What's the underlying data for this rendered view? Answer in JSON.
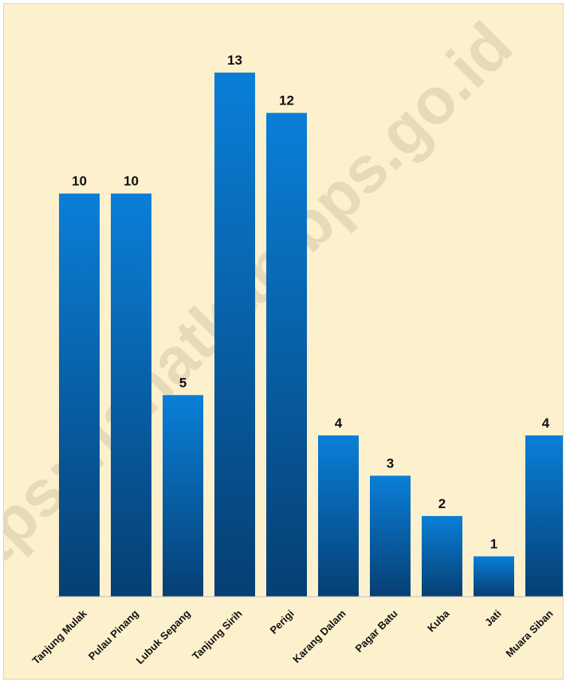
{
  "watermark": "https://lahatkab.bps.go.id",
  "colors": {
    "background": "#fdf1cd",
    "bar_top": "#0a7fd8",
    "bar_bottom": "#063f73",
    "axis": "#bdbdbd"
  },
  "chart_data": {
    "type": "bar",
    "categories": [
      "Tanjung Mulak",
      "Pulau Pinang",
      "Lubuk Sepang",
      "Tanjung Sirih",
      "Perigi",
      "Karang Dalam",
      "Pagar Batu",
      "Kuba",
      "Jati",
      "Muara Siban"
    ],
    "values": [
      10,
      10,
      5,
      13,
      12,
      4,
      3,
      2,
      1,
      4
    ],
    "ylim": [
      0,
      13
    ],
    "grid": false,
    "legend": "none",
    "data_labels": true
  }
}
